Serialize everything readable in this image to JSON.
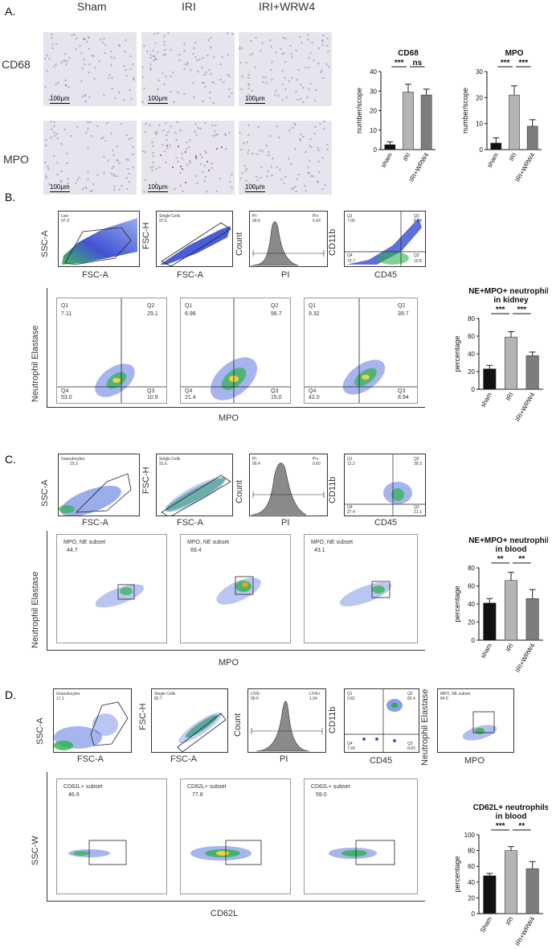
{
  "panel_a": {
    "letter": "A.",
    "col_headers": [
      "Sham",
      "IRI",
      "IRI+WRW4"
    ],
    "row_labels": [
      "CD68",
      "MPO"
    ],
    "scale_bar": "100μm"
  },
  "panel_b": {
    "letter": "B.",
    "gates": [
      {
        "x_label": "FSC-A",
        "y_label": "SSC-A",
        "gate_name": "Live",
        "gate_value": "97.3"
      },
      {
        "x_label": "FSC-A",
        "y_label": "FSC-H",
        "gate_name": "Single Cells",
        "gate_value": "97.5"
      },
      {
        "x_label": "PI",
        "y_label": "Count",
        "left_name": "PI-",
        "left_value": "99.6",
        "right_name": "PI+",
        "right_value": "0.43"
      },
      {
        "x_label": "CD45",
        "y_label": "CD11b",
        "q1": "Q1",
        "q1_val": "7.05",
        "q2": "Q2",
        "q2_val": "8.44",
        "q4": "Q4",
        "q4_val": "73.7",
        "q3": "Q3",
        "q3_val": "10.8"
      }
    ],
    "big_x_label": "MPO",
    "big_y_label": "Neutrophil Elastase",
    "quad_plots": [
      {
        "q1": "7.11",
        "q2": "29.1",
        "q3": "10.9",
        "q4": "53.0"
      },
      {
        "q1": "6.98",
        "q2": "56.7",
        "q3": "15.0",
        "q4": "21.4"
      },
      {
        "q1": "9.32",
        "q2": "39.7",
        "q3": "8.94",
        "q4": "42.0"
      }
    ],
    "quad_names": {
      "q1": "Q1",
      "q2": "Q2",
      "q3": "Q3",
      "q4": "Q4"
    }
  },
  "panel_c": {
    "letter": "C.",
    "gates": [
      {
        "x_label": "FSC-A",
        "y_label": "SSC-A",
        "gate_name": "Granulocytes",
        "gate_value": "15.2"
      },
      {
        "x_label": "FSC-A",
        "y_label": "FSC-H",
        "gate_name": "Single Cells",
        "gate_value": "91.6"
      },
      {
        "x_label": "PI",
        "y_label": "Count",
        "left_name": "PI-",
        "left_value": "99.4",
        "right_name": "PI+",
        "right_value": "0.60"
      },
      {
        "x_label": "CD45",
        "y_label": "CD11b",
        "q1": "Q1",
        "q1_val": "12.2",
        "q2": "Q2",
        "q2_val": "39.3",
        "q4": "Q4",
        "q4_val": "27.4",
        "q3": "Q3",
        "q3_val": "21.1"
      }
    ],
    "big_x_label": "MPO",
    "big_y_label": "Neutrophil Elastase",
    "subset_name": "MPO, NE subset",
    "subset_values": [
      "44.7",
      "69.4",
      "43.1"
    ]
  },
  "panel_d": {
    "letter": "D.",
    "gates": [
      {
        "x_label": "FSC-A",
        "y_label": "SSC-A",
        "gate_name": "Granulocytes",
        "gate_value": "17.1"
      },
      {
        "x_label": "FSC-A",
        "y_label": "FSC-H",
        "gate_name": "Single Cells",
        "gate_value": "82.7"
      },
      {
        "x_label": "PI",
        "y_label": "Count",
        "left_name": "LIVE-",
        "left_value": "99.0",
        "right_name": "LIVE+",
        "right_value": "1.04"
      },
      {
        "x_label": "CD45",
        "y_label": "CD11b",
        "q1": "Q1",
        "q1_val": "0.82",
        "q2": "Q2",
        "q2_val": "82.4",
        "q4": "Q4",
        "q4_val": "7.93",
        "q3": "Q3",
        "q3_val": "8.83"
      },
      {
        "x_label": "MPO",
        "y_label": "Neutrophil Elastase",
        "gate_name": "MPO, NE subset",
        "gate_value": "84.6"
      }
    ],
    "big_x_label": "CD62L",
    "big_y_label": "SSC-W",
    "subset_name": "CD62L+ subset",
    "subset_values": [
      "46.9",
      "77.8",
      "59.0"
    ]
  },
  "chart_data": [
    {
      "type": "bar",
      "title": "CD68",
      "categories": [
        "sham",
        "IRI",
        "IRI+WRW4"
      ],
      "values": [
        2.5,
        29.5,
        28
      ],
      "errors": [
        1.5,
        4,
        3
      ],
      "ylabel": "number/scope",
      "ylim": [
        0,
        40
      ],
      "yticks": [
        "0",
        "10",
        "20",
        "30",
        "40"
      ],
      "colors": [
        "#111111",
        "#b5b5b5",
        "#7d7d7d"
      ],
      "significance": [
        {
          "from": 0,
          "to": 1,
          "label": "***"
        },
        {
          "from": 1,
          "to": 2,
          "label": "ns"
        }
      ]
    },
    {
      "type": "bar",
      "title": "MPO",
      "categories": [
        "sham",
        "IRI",
        "IRI+WRW4"
      ],
      "values": [
        2.5,
        21,
        9
      ],
      "errors": [
        2,
        3.5,
        2.5
      ],
      "ylabel": "number/scope",
      "ylim": [
        0,
        30
      ],
      "yticks": [
        "0",
        "10",
        "20",
        "30"
      ],
      "colors": [
        "#111111",
        "#b5b5b5",
        "#7d7d7d"
      ],
      "significance": [
        {
          "from": 0,
          "to": 1,
          "label": "***"
        },
        {
          "from": 1,
          "to": 2,
          "label": "***"
        }
      ]
    },
    {
      "type": "bar",
      "title": "NE+MPO+ neutrophils in kidney",
      "title_lines": [
        "NE+MPO+ neutrophils",
        "in kidney"
      ],
      "categories": [
        "sham",
        "IRI",
        "IRI+WRW4"
      ],
      "values": [
        23,
        59,
        38
      ],
      "errors": [
        4,
        6,
        4
      ],
      "ylabel": "percentage",
      "ylim": [
        0,
        80
      ],
      "yticks": [
        "0",
        "20",
        "40",
        "60",
        "80"
      ],
      "colors": [
        "#111111",
        "#b5b5b5",
        "#7d7d7d"
      ],
      "significance": [
        {
          "from": 0,
          "to": 1,
          "label": "***"
        },
        {
          "from": 1,
          "to": 2,
          "label": "***"
        }
      ]
    },
    {
      "type": "bar",
      "title": "NE+MPO+ neutrophils in blood",
      "title_lines": [
        "NE+MPO+ neutrophils",
        "in blood"
      ],
      "categories": [
        "sham",
        "IRI",
        "IRI+WRW4"
      ],
      "values": [
        41,
        66,
        46
      ],
      "errors": [
        5,
        9,
        10
      ],
      "ylabel": "percentage",
      "ylim": [
        0,
        80
      ],
      "yticks": [
        "0",
        "20",
        "40",
        "60",
        "80"
      ],
      "colors": [
        "#111111",
        "#b5b5b5",
        "#7d7d7d"
      ],
      "significance": [
        {
          "from": 0,
          "to": 1,
          "label": "**"
        },
        {
          "from": 1,
          "to": 2,
          "label": "**"
        }
      ]
    },
    {
      "type": "bar",
      "title": "CD62L+ neutrophils in blood",
      "title_lines": [
        "CD62L+ neutrophils",
        "in blood"
      ],
      "categories": [
        "Sham",
        "IRI",
        "IRI+WRW4"
      ],
      "values": [
        48,
        80,
        57
      ],
      "errors": [
        3,
        5,
        9
      ],
      "ylabel": "percentage",
      "ylim": [
        0,
        100
      ],
      "yticks": [
        "0",
        "20",
        "40",
        "60",
        "80",
        "100"
      ],
      "colors": [
        "#111111",
        "#b5b5b5",
        "#7d7d7d"
      ],
      "significance": [
        {
          "from": 0,
          "to": 1,
          "label": "***"
        },
        {
          "from": 1,
          "to": 2,
          "label": "**"
        }
      ]
    }
  ]
}
